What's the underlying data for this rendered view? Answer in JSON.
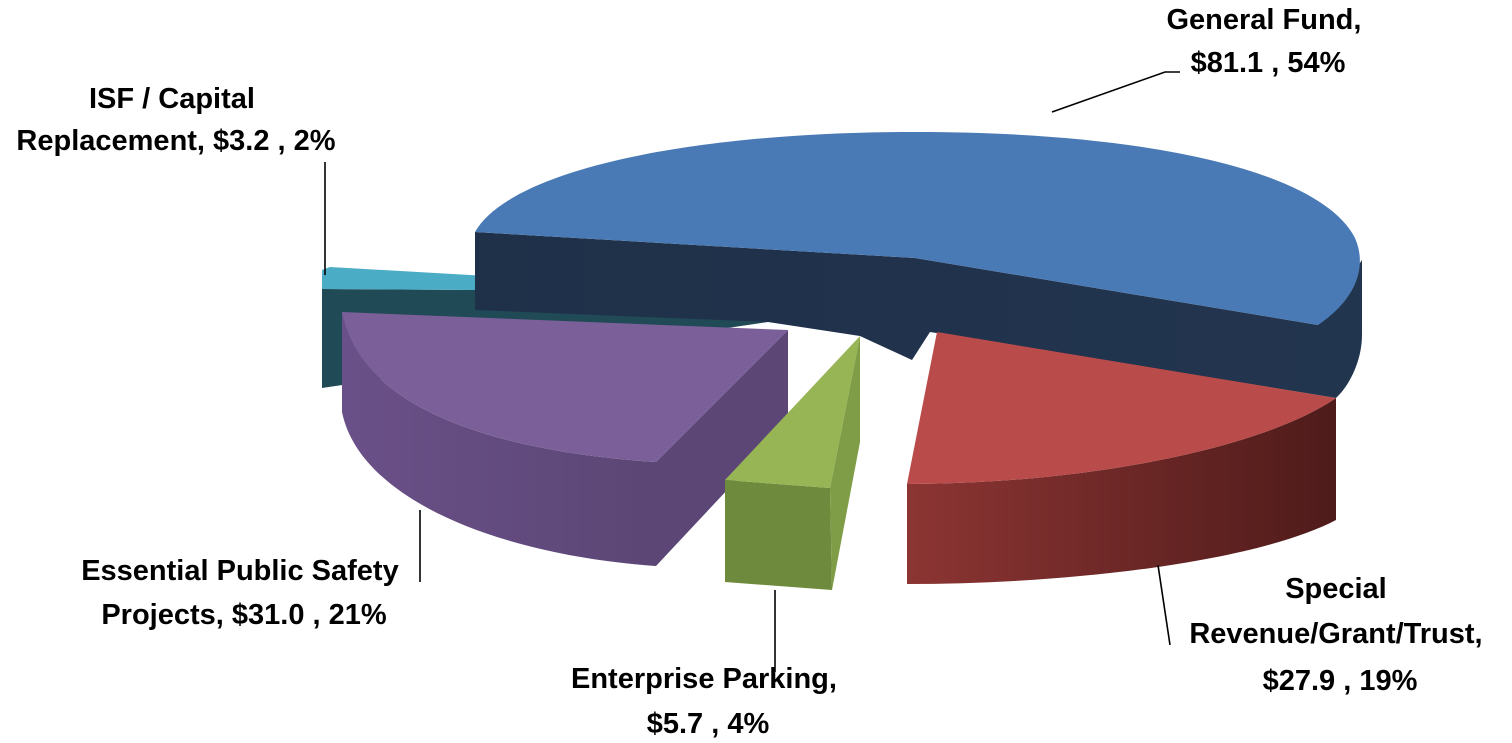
{
  "chart_data": {
    "type": "pie",
    "title": "",
    "units_prefix": "$",
    "slices": [
      {
        "name": "General Fund",
        "value": 81.1,
        "percent": 54,
        "color": "#4A7AB5",
        "side_color": "#1F3049",
        "exploded": false,
        "label_lines": [
          "General Fund,",
          "$81.1 , 54%"
        ]
      },
      {
        "name": "Special Revenue/Grant/Trust",
        "value": 27.9,
        "percent": 19,
        "color": "#B94C4A",
        "side_color": "#6A2624",
        "exploded": true,
        "label_lines": [
          "Special",
          "Revenue/Grant/Trust,",
          "$27.9 , 19%"
        ]
      },
      {
        "name": "Enterprise Parking",
        "value": 5.7,
        "percent": 4,
        "color": "#98B556",
        "side_color": "#6E8A3C",
        "exploded": true,
        "label_lines": [
          "Enterprise Parking,",
          "$5.7 , 4%"
        ]
      },
      {
        "name": "Essential Public Safety Projects",
        "value": 31.0,
        "percent": 21,
        "color": "#7B5F99",
        "side_color": "#5B4675",
        "exploded": true,
        "label_lines": [
          "Essential Public Safety",
          "Projects,  $31.0 , 21%"
        ]
      },
      {
        "name": "ISF / Capital Replacement",
        "value": 3.2,
        "percent": 2,
        "color": "#4AACC5",
        "side_color": "#204A55",
        "exploded": true,
        "label_lines": [
          "ISF / Capital",
          "Replacement,  $3.2 , 2%"
        ]
      }
    ],
    "legend": "none"
  }
}
